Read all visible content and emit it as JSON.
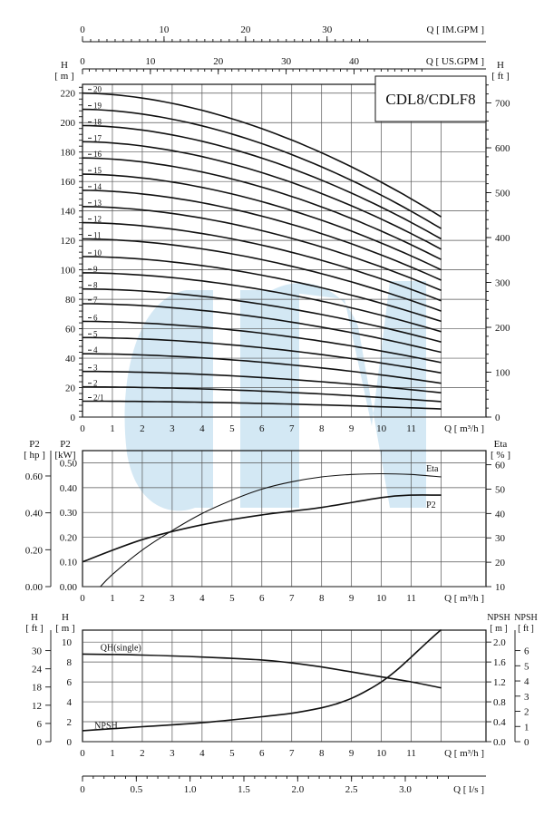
{
  "chart_data": [
    {
      "id": "head",
      "type": "line",
      "title": "CDL8/CDLF8",
      "top_axis_im": {
        "label": "Q [ IM.GPM ]",
        "ticks": [
          0,
          10,
          20,
          30
        ]
      },
      "top_axis_us": {
        "label": "Q [ US.GPM ]",
        "ticks": [
          0,
          10,
          20,
          30,
          40
        ]
      },
      "ylabel_left": "H\n[ m ]",
      "ylabel_right": "H\n[ ft ]",
      "xlabel": "Q [ m³/h ]",
      "xlim": [
        0,
        13.5
      ],
      "ylim": [
        0,
        226
      ],
      "x_ticks": [
        0,
        1,
        2,
        3,
        4,
        5,
        6,
        7,
        8,
        9,
        10,
        11
      ],
      "y_ticks_left": [
        0,
        20,
        40,
        60,
        80,
        100,
        120,
        140,
        160,
        180,
        200,
        220
      ],
      "y_ticks_right": [
        0,
        100,
        200,
        300,
        400,
        500,
        600,
        700
      ],
      "x_end": 12,
      "series": [
        {
          "name": "2/1",
          "start": 10.8,
          "end": 5.5
        },
        {
          "name": "2",
          "start": 20.5,
          "end": 10.5
        },
        {
          "name": "3",
          "start": 31,
          "end": 16.5
        },
        {
          "name": "4",
          "start": 43,
          "end": 23
        },
        {
          "name": "5",
          "start": 54,
          "end": 30
        },
        {
          "name": "6",
          "start": 65,
          "end": 37
        },
        {
          "name": "7",
          "start": 77,
          "end": 44
        },
        {
          "name": "8",
          "start": 87,
          "end": 51
        },
        {
          "name": "9",
          "start": 98,
          "end": 58
        },
        {
          "name": "10",
          "start": 109,
          "end": 65
        },
        {
          "name": "11",
          "start": 121,
          "end": 72
        },
        {
          "name": "12",
          "start": 132,
          "end": 79
        },
        {
          "name": "13",
          "start": 143,
          "end": 86
        },
        {
          "name": "14",
          "start": 154,
          "end": 93
        },
        {
          "name": "15",
          "start": 165,
          "end": 100
        },
        {
          "name": "16",
          "start": 176,
          "end": 107
        },
        {
          "name": "17",
          "start": 187,
          "end": 114
        },
        {
          "name": "18",
          "start": 198,
          "end": 121
        },
        {
          "name": "19",
          "start": 209,
          "end": 128
        },
        {
          "name": "20",
          "start": 220,
          "end": 136
        }
      ]
    },
    {
      "id": "power",
      "type": "line",
      "ylabel_left_outer": "P2\n[ hp ]",
      "ylabel_left": "P2\n[kW]",
      "ylabel_right": "Eta\n[ % ]",
      "xlabel": "Q [ m³/h ]",
      "xlim": [
        0,
        13.5
      ],
      "ylim": [
        0,
        0.55
      ],
      "x_ticks": [
        0,
        1,
        2,
        3,
        4,
        5,
        6,
        7,
        8,
        9,
        10,
        11
      ],
      "y_ticks_kw": [
        0.0,
        0.1,
        0.2,
        0.3,
        0.4,
        0.5
      ],
      "y_ticks_hp": [
        0.0,
        0.2,
        0.4,
        0.6
      ],
      "y_ticks_eta": [
        10,
        20,
        30,
        40,
        50,
        60
      ],
      "series": [
        {
          "name": "P2",
          "x": [
            0,
            2,
            4,
            6,
            8,
            10,
            11,
            12
          ],
          "y": [
            0.1,
            0.19,
            0.25,
            0.29,
            0.32,
            0.36,
            0.37,
            0.37
          ]
        },
        {
          "name": "Eta",
          "x": [
            0.6,
            1,
            2,
            3,
            4,
            5,
            6,
            7,
            8,
            9,
            10,
            11,
            12
          ],
          "y": [
            10,
            15,
            25,
            33,
            40,
            45.5,
            50,
            53,
            55,
            56,
            56.3,
            56,
            55
          ]
        }
      ]
    },
    {
      "id": "npsh",
      "type": "line",
      "ylabel_left_outer": "H\n[ ft ]",
      "ylabel_left": "H\n[ m ]",
      "ylabel_right": "NPSH\n[ m ]",
      "ylabel_right_outer": "NPSH\n[ ft ]",
      "xlabel": "Q [ m³/h ]",
      "xlim": [
        0,
        13.5
      ],
      "ylim": [
        0,
        11.2
      ],
      "x_ticks": [
        0,
        1,
        2,
        3,
        4,
        5,
        6,
        7,
        8,
        9,
        10,
        11
      ],
      "y_ticks_m": [
        0,
        2,
        4,
        6,
        8,
        10
      ],
      "y_ticks_ft": [
        0,
        6,
        12,
        18,
        24,
        30
      ],
      "y_ticks_npsh_m": [
        0.0,
        0.4,
        0.8,
        1.2,
        1.6,
        2.0
      ],
      "y_ticks_npsh_ft": [
        0,
        1,
        2,
        3,
        4,
        5,
        6
      ],
      "series": [
        {
          "name": "QH(single)",
          "x": [
            0,
            2,
            4,
            6,
            7,
            8,
            9,
            10,
            11,
            12
          ],
          "y": [
            8.8,
            8.7,
            8.5,
            8.2,
            7.9,
            7.5,
            7.0,
            6.5,
            6.0,
            5.4
          ]
        },
        {
          "name": "NPSH",
          "x": [
            0,
            2,
            4,
            6,
            7,
            8,
            8.5,
            9,
            9.5,
            10,
            10.5,
            11,
            11.5,
            12
          ],
          "y": [
            0.22,
            0.3,
            0.38,
            0.5,
            0.57,
            0.68,
            0.76,
            0.87,
            1.02,
            1.2,
            1.43,
            1.7,
            1.98,
            2.25
          ]
        }
      ]
    }
  ],
  "bottom_axis": {
    "label": "Q [ l/s ]",
    "ticks": [
      0,
      0.5,
      1.0,
      1.5,
      2.0,
      2.5,
      3.0
    ]
  },
  "watermark": {
    "color": "#cfe6f3"
  }
}
